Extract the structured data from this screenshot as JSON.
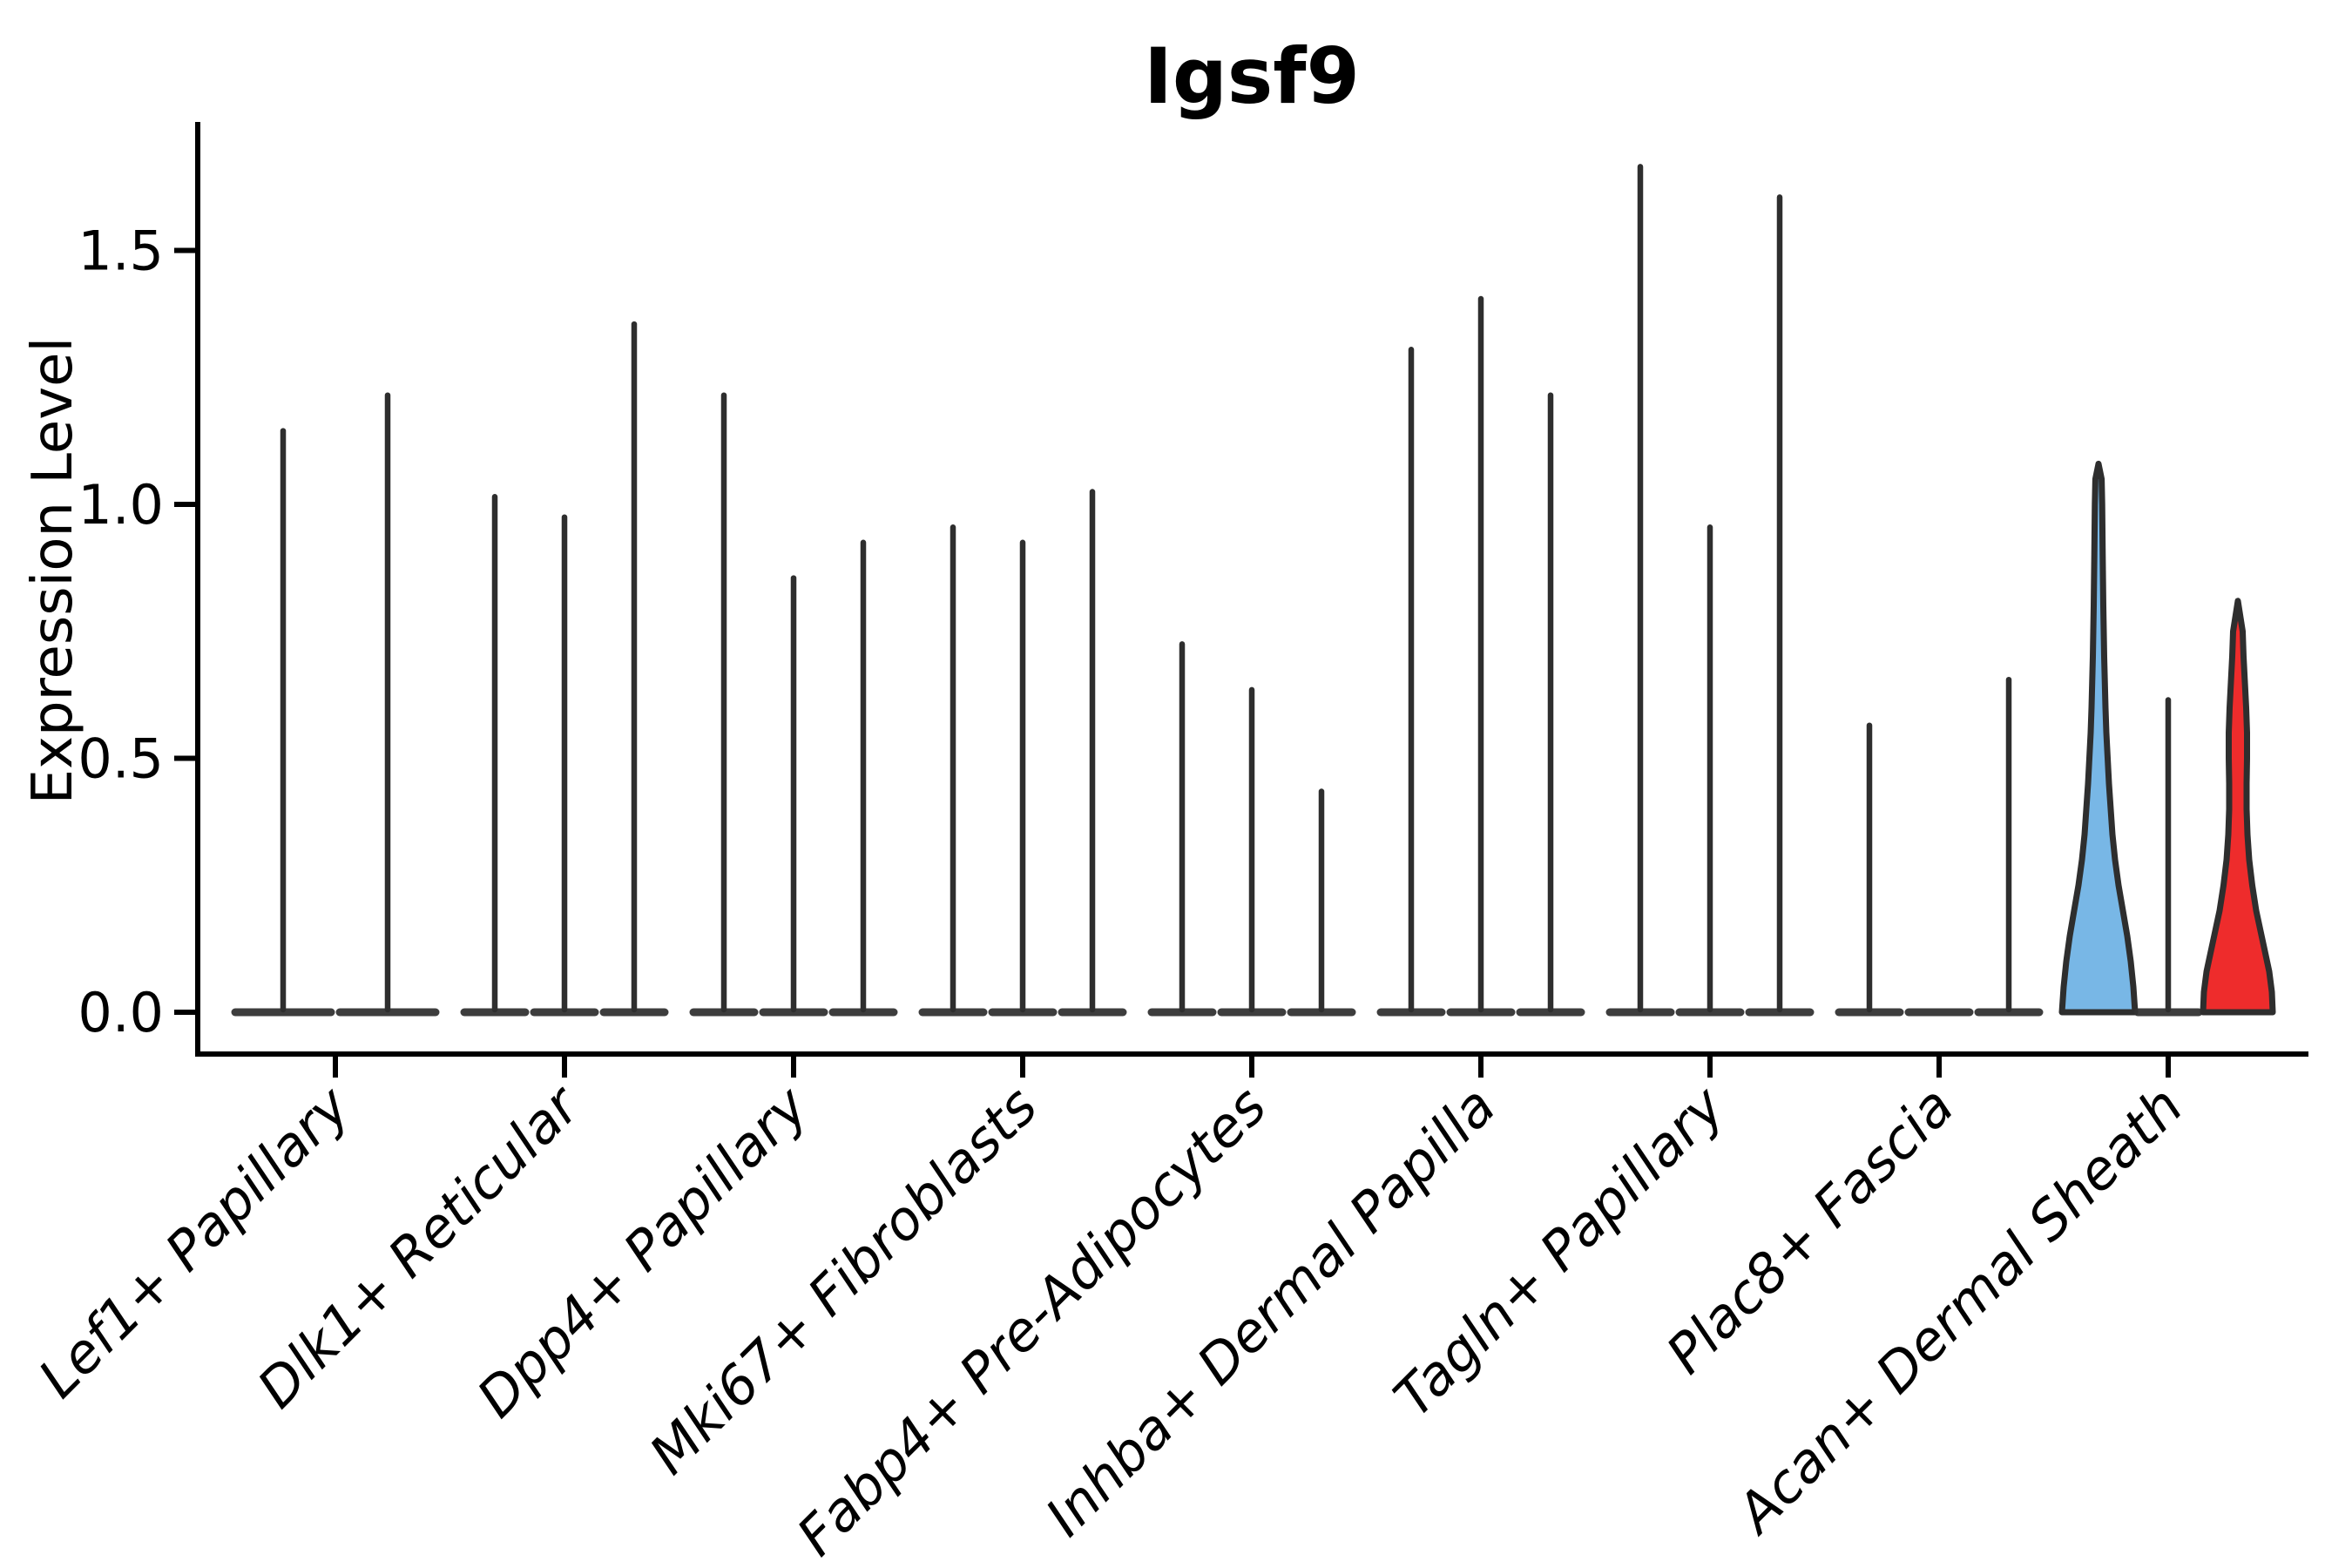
{
  "title": "Igsf9",
  "y_axis": {
    "label": "Expression Level",
    "tick_labels": [
      "0.0",
      "0.5",
      "1.0",
      "1.5"
    ]
  },
  "x_axis": {
    "categories": [
      "Lef1+ Papillary",
      "Dlk1+ Reticular",
      "Dpp4+ Papillary",
      "Mki67+ Fibroblasts",
      "Fabp4+ Pre-Adipocytes",
      "Inhba+ Dermal Papilla",
      "Tagln+ Papillary",
      "Plac8+ Fascia",
      "Acan+ Dermal Sheath"
    ]
  },
  "colors": {
    "background": "#FFFFFF",
    "axis": "#000000",
    "violin_outline": "#2E2E2E",
    "violin_base": "#333333",
    "highlight_blue": "#78B7E6",
    "highlight_red": "#EE2C2C"
  },
  "chart_data": {
    "type": "violin",
    "title": "Igsf9",
    "xlabel": "",
    "ylabel": "Expression Level",
    "ylim": [
      0,
      1.75
    ],
    "yticks": [
      0.0,
      0.5,
      1.0,
      1.5
    ],
    "grid": false,
    "legend_position": "none",
    "description": "Violin plot of Igsf9 expression; most violins collapse to thin spikes at zero with a flat base. In the last category one violin is filled sky blue and one bright red.",
    "categories": [
      "Lef1+ Papillary",
      "Dlk1+ Reticular",
      "Dpp4+ Papillary",
      "Mki67+ Fibroblasts",
      "Fabp4+ Pre-Adipocytes",
      "Inhba+ Dermal Papilla",
      "Tagln+ Papillary",
      "Plac8+ Fascia",
      "Acan+ Dermal Sheath"
    ],
    "groups": [
      {
        "category": "Lef1+ Papillary",
        "violins": [
          {
            "max_expression": 1.15
          },
          {
            "max_expression": 1.22
          }
        ]
      },
      {
        "category": "Dlk1+ Reticular",
        "violins": [
          {
            "max_expression": 1.02
          },
          {
            "max_expression": 0.98
          },
          {
            "max_expression": 1.36
          }
        ]
      },
      {
        "category": "Dpp4+ Papillary",
        "violins": [
          {
            "max_expression": 1.22
          },
          {
            "max_expression": 0.86
          },
          {
            "max_expression": 0.93
          }
        ]
      },
      {
        "category": "Mki67+ Fibroblasts",
        "violins": [
          {
            "max_expression": 0.96
          },
          {
            "max_expression": 0.93
          },
          {
            "max_expression": 1.03
          }
        ]
      },
      {
        "category": "Fabp4+ Pre-Adipocytes",
        "violins": [
          {
            "max_expression": 0.73
          },
          {
            "max_expression": 0.64
          },
          {
            "max_expression": 0.44
          }
        ]
      },
      {
        "category": "Inhba+ Dermal Papilla",
        "violins": [
          {
            "max_expression": 1.31
          },
          {
            "max_expression": 1.41
          },
          {
            "max_expression": 1.22
          }
        ]
      },
      {
        "category": "Tagln+ Papillary",
        "violins": [
          {
            "max_expression": 1.67
          },
          {
            "max_expression": 0.96
          },
          {
            "max_expression": 1.61
          }
        ]
      },
      {
        "category": "Plac8+ Fascia",
        "violins": [
          {
            "max_expression": 0.57
          },
          {
            "max_expression": 0.0
          },
          {
            "max_expression": 0.66
          }
        ]
      },
      {
        "category": "Acan+ Dermal Sheath",
        "violins": [
          {
            "max_expression": 1.08,
            "fill": "#78B7E6",
            "profile": [
              [
                0,
                42
              ],
              [
                0.05,
                40
              ],
              [
                0.1,
                37
              ],
              [
                0.15,
                33
              ],
              [
                0.2,
                28
              ],
              [
                0.25,
                23
              ],
              [
                0.3,
                19
              ],
              [
                0.35,
                16
              ],
              [
                0.4,
                14
              ],
              [
                0.45,
                12
              ],
              [
                0.5,
                10.5
              ],
              [
                0.55,
                9
              ],
              [
                0.6,
                8
              ],
              [
                0.7,
                6.5
              ],
              [
                0.8,
                5.5
              ],
              [
                0.9,
                4.8
              ],
              [
                1.0,
                4.2
              ],
              [
                1.05,
                3.6
              ],
              [
                1.08,
                0
              ]
            ]
          },
          {
            "max_expression": 0.62
          },
          {
            "max_expression": 0.81,
            "fill": "#EE2C2C",
            "profile": [
              [
                0,
                40
              ],
              [
                0.04,
                39
              ],
              [
                0.08,
                36
              ],
              [
                0.12,
                31
              ],
              [
                0.16,
                26
              ],
              [
                0.2,
                21
              ],
              [
                0.25,
                16.5
              ],
              [
                0.3,
                13
              ],
              [
                0.35,
                11
              ],
              [
                0.4,
                10
              ],
              [
                0.45,
                10
              ],
              [
                0.5,
                10.5
              ],
              [
                0.55,
                10.5
              ],
              [
                0.6,
                9.5
              ],
              [
                0.65,
                8
              ],
              [
                0.7,
                6.5
              ],
              [
                0.75,
                5.5
              ],
              [
                0.81,
                0
              ]
            ]
          }
        ]
      }
    ]
  }
}
